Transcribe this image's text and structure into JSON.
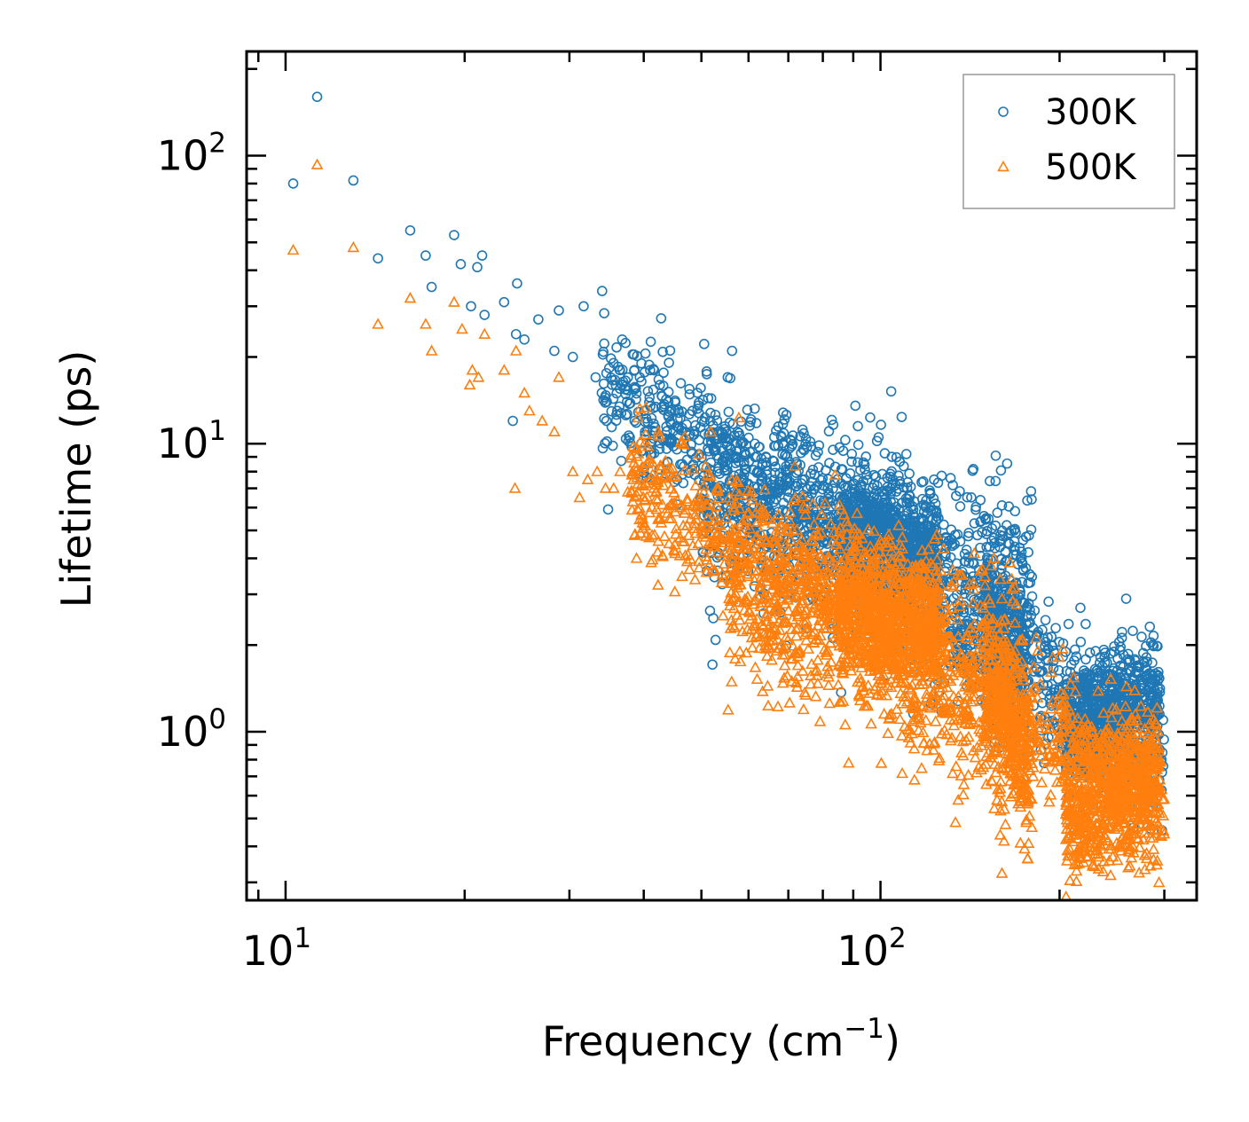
{
  "chart_data": {
    "type": "scatter",
    "xscale": "log",
    "yscale": "log",
    "xlim": [
      8.6,
      340
    ],
    "ylim": [
      0.26,
      230
    ],
    "xlabel": "Frequency (cm",
    "xlabel_exp": "−1",
    "xlabel_close": ")",
    "ylabel": "Lifetime (ps)",
    "x_ticks": [
      {
        "value": 10,
        "base": "10",
        "exp": "1"
      },
      {
        "value": 100,
        "base": "10",
        "exp": "2"
      }
    ],
    "y_ticks": [
      {
        "value": 1,
        "base": "10",
        "exp": "0"
      },
      {
        "value": 10,
        "base": "10",
        "exp": "1"
      },
      {
        "value": 100,
        "base": "10",
        "exp": "2"
      }
    ],
    "legend": {
      "placement": "top-right"
    },
    "series": [
      {
        "name": "300K",
        "marker": "circle",
        "color": "#1f77b4",
        "x": [
          10.3,
          11.3,
          13.0,
          14.3,
          16.2,
          17.2,
          17.6,
          19.2,
          19.7,
          20.5,
          21.0,
          21.4,
          21.6,
          23.3,
          24.1,
          24.4,
          24.5,
          25.2,
          26.6,
          28.3,
          28.8,
          30.4,
          31.7,
          33.2,
          34.0,
          35.4,
          36.1,
          36.8,
          37.5,
          38.6,
          39.4,
          40.2,
          41.0,
          41.8,
          44.0,
          45.2,
          46.7,
          48.3,
          50.1,
          52.0,
          54.0,
          56.3,
          58.2,
          61.5
        ],
        "y": [
          80,
          160,
          82,
          44,
          55,
          45,
          35,
          53,
          42,
          30,
          41,
          45,
          28,
          31,
          12,
          24,
          36,
          23,
          27,
          21,
          29,
          20,
          30,
          17,
          15,
          16,
          13,
          23,
          14,
          12,
          17,
          11,
          18,
          11,
          14,
          13,
          10,
          13,
          12,
          10,
          11,
          21,
          10,
          10
        ],
        "dense_bands": [
          {
            "x": [
              34,
              300
            ],
            "y_center": [
              16,
              0.8
            ],
            "log_spread": 0.12,
            "points": 1200
          },
          {
            "x": [
              50,
              180
            ],
            "y_center": [
              7,
              2.8
            ],
            "log_spread": 0.18,
            "points": 900
          },
          {
            "x": [
              85,
              125
            ],
            "y_center": [
              5.5,
              4.5
            ],
            "log_spread": 0.1,
            "points": 600
          },
          {
            "x": [
              150,
              175
            ],
            "y_center": [
              2.5,
              1.6
            ],
            "log_spread": 0.14,
            "points": 300
          },
          {
            "x": [
              205,
              295
            ],
            "y_center": [
              1.0,
              1.35
            ],
            "log_spread": 0.1,
            "points": 700
          }
        ]
      },
      {
        "name": "500K",
        "marker": "triangle",
        "color": "#ff7f0e",
        "x": [
          10.3,
          11.3,
          13.0,
          14.3,
          16.2,
          17.2,
          17.6,
          19.2,
          19.8,
          20.4,
          20.6,
          21.1,
          21.6,
          23.3,
          24.3,
          24.4,
          25.2,
          25.7,
          27.0,
          28.3,
          28.8,
          30.4,
          31.2,
          32.2,
          33.4,
          34.5,
          35.6,
          36.5,
          37.6,
          38.9,
          40.2,
          41.6,
          43.0,
          44.5,
          46.0,
          47.6,
          49.4,
          51.2,
          53.2,
          55.5,
          57.8
        ],
        "y": [
          47,
          93,
          48,
          26,
          32,
          26,
          21,
          31,
          25,
          16,
          18,
          17,
          24,
          18,
          7,
          21,
          15,
          13,
          12,
          11,
          17,
          8,
          6.5,
          7.5,
          8,
          7,
          7,
          8,
          6.8,
          4,
          6.4,
          7,
          4.1,
          5.5,
          6,
          4.8,
          4.5,
          5.5,
          4.2,
          4.7,
          12.3
        ],
        "dense_bands": [
          {
            "x": [
              38,
              300
            ],
            "y_center": [
              7.5,
              0.55
            ],
            "log_spread": 0.12,
            "points": 1200
          },
          {
            "x": [
              55,
              175
            ],
            "y_center": [
              3.5,
              1.3
            ],
            "log_spread": 0.18,
            "points": 900
          },
          {
            "x": [
              85,
              125
            ],
            "y_center": [
              2.8,
              2.4
            ],
            "log_spread": 0.11,
            "points": 600
          },
          {
            "x": [
              150,
              180
            ],
            "y_center": [
              1.3,
              0.7
            ],
            "log_spread": 0.15,
            "points": 300
          },
          {
            "x": [
              205,
              295
            ],
            "y_center": [
              0.5,
              0.75
            ],
            "log_spread": 0.12,
            "points": 700
          }
        ]
      }
    ]
  }
}
